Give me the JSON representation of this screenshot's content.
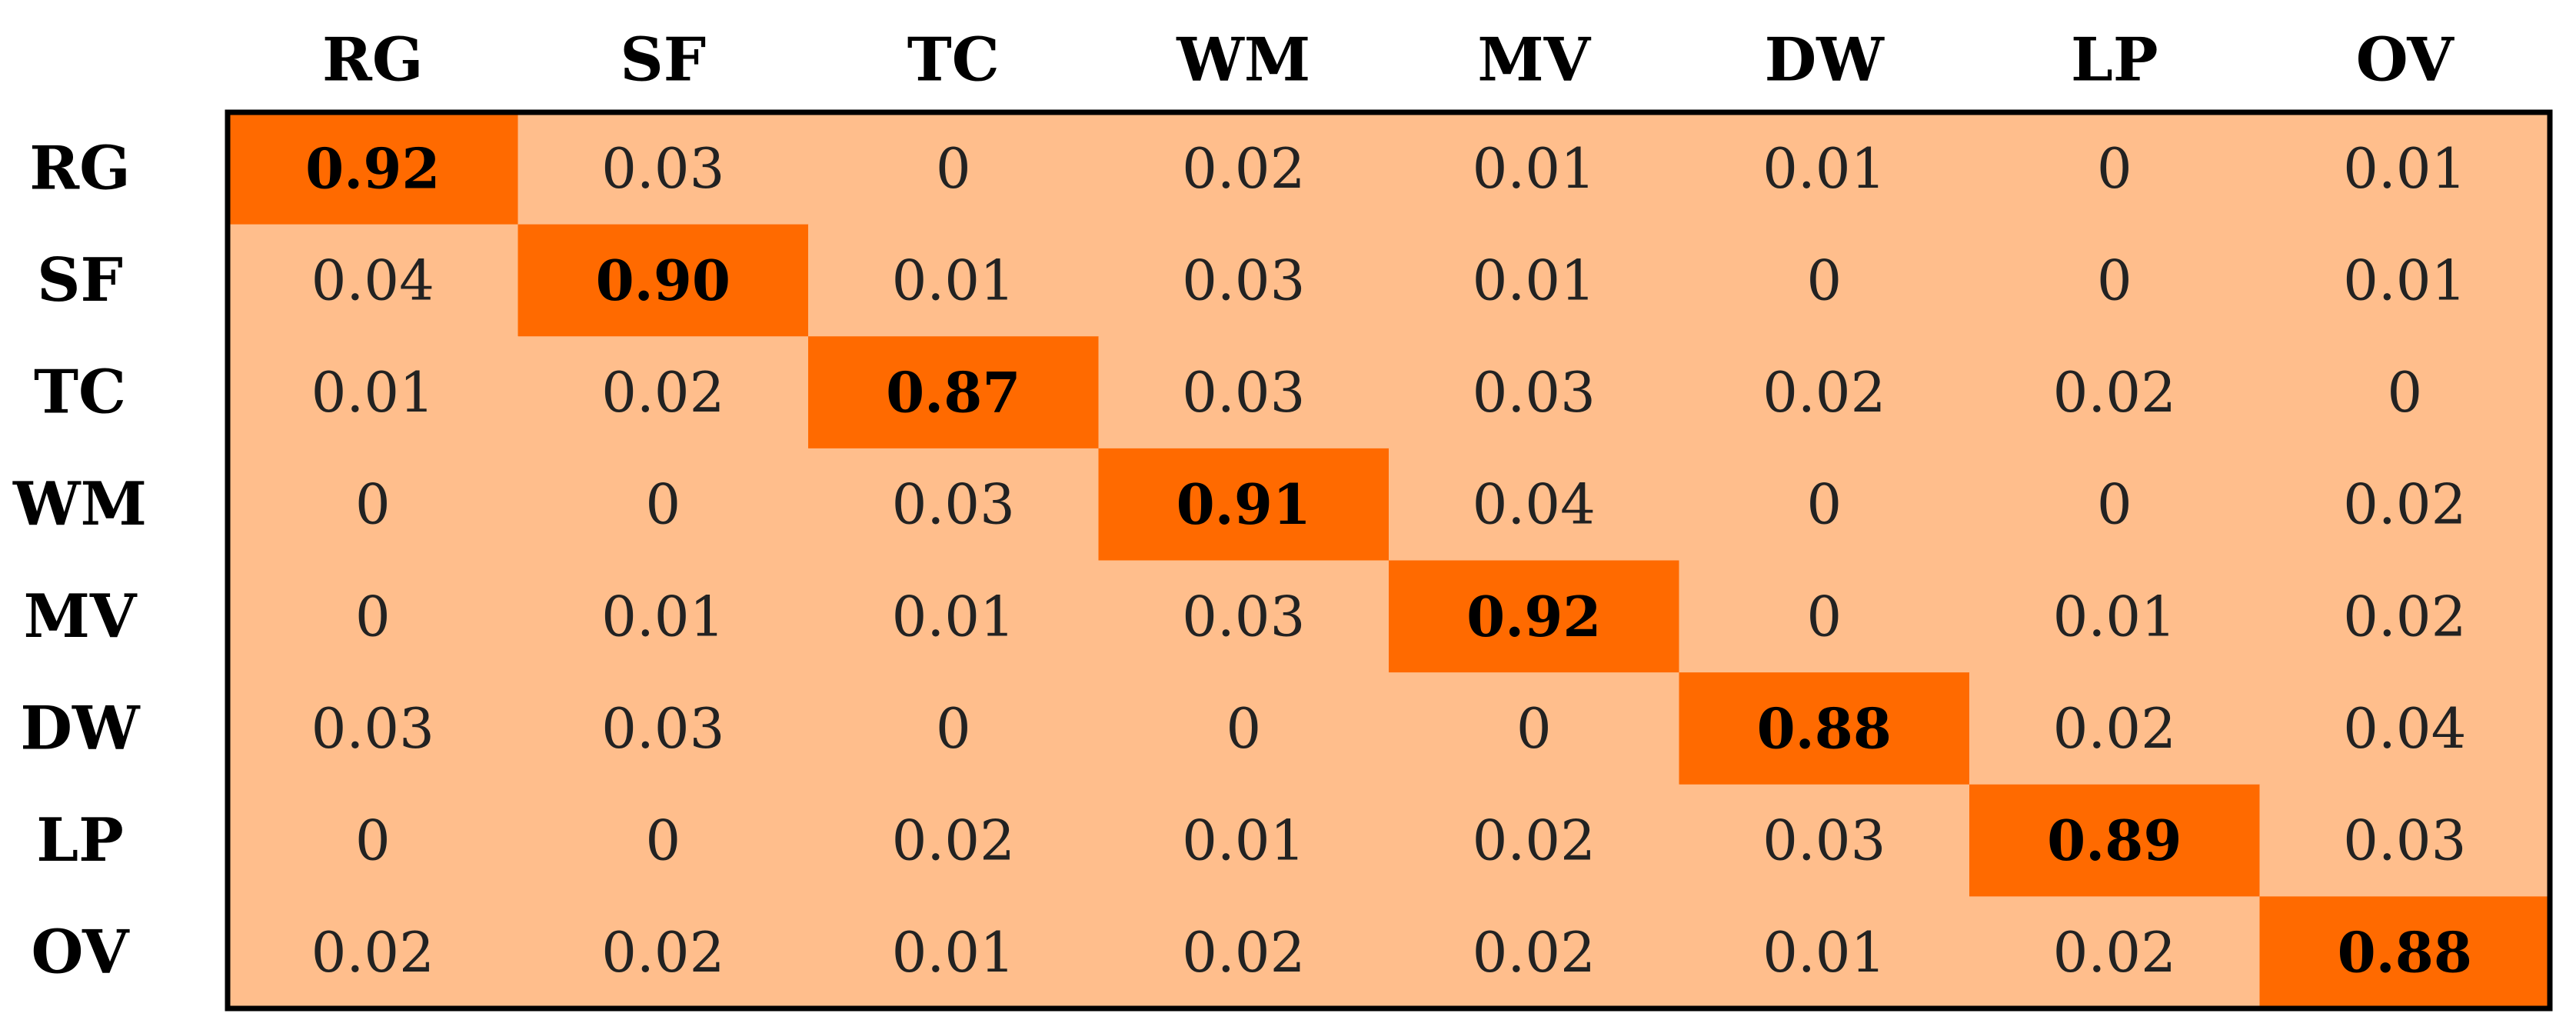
{
  "chart_data": {
    "type": "heatmap",
    "title": "",
    "xlabel": "",
    "ylabel": "",
    "x_categories": [
      "RG",
      "SF",
      "TC",
      "WM",
      "MV",
      "DW",
      "LP",
      "OV"
    ],
    "y_categories": [
      "RG",
      "SF",
      "TC",
      "WM",
      "MV",
      "DW",
      "LP",
      "OV"
    ],
    "values": [
      [
        "0.92",
        "0.03",
        "0",
        "0.02",
        "0.01",
        "0.01",
        "0",
        "0.01"
      ],
      [
        "0.04",
        "0.90",
        "0.01",
        "0.03",
        "0.01",
        "0",
        "0",
        "0.01"
      ],
      [
        "0.01",
        "0.02",
        "0.87",
        "0.03",
        "0.03",
        "0.02",
        "0.02",
        "0"
      ],
      [
        "0",
        "0",
        "0.03",
        "0.91",
        "0.04",
        "0",
        "0",
        "0.02"
      ],
      [
        "0",
        "0.01",
        "0.01",
        "0.03",
        "0.92",
        "0",
        "0.01",
        "0.02"
      ],
      [
        "0.03",
        "0.03",
        "0",
        "0",
        "0",
        "0.88",
        "0.02",
        "0.04"
      ],
      [
        "0",
        "0",
        "0.02",
        "0.01",
        "0.02",
        "0.03",
        "0.89",
        "0.03"
      ],
      [
        "0.02",
        "0.02",
        "0.01",
        "0.02",
        "0.02",
        "0.01",
        "0.02",
        "0.88"
      ]
    ],
    "grid": false,
    "legend": "none",
    "colors": {
      "off_diagonal": "#FFBE8C",
      "diagonal": "#FF6A00",
      "border": "#000000",
      "text": "#222222"
    }
  }
}
